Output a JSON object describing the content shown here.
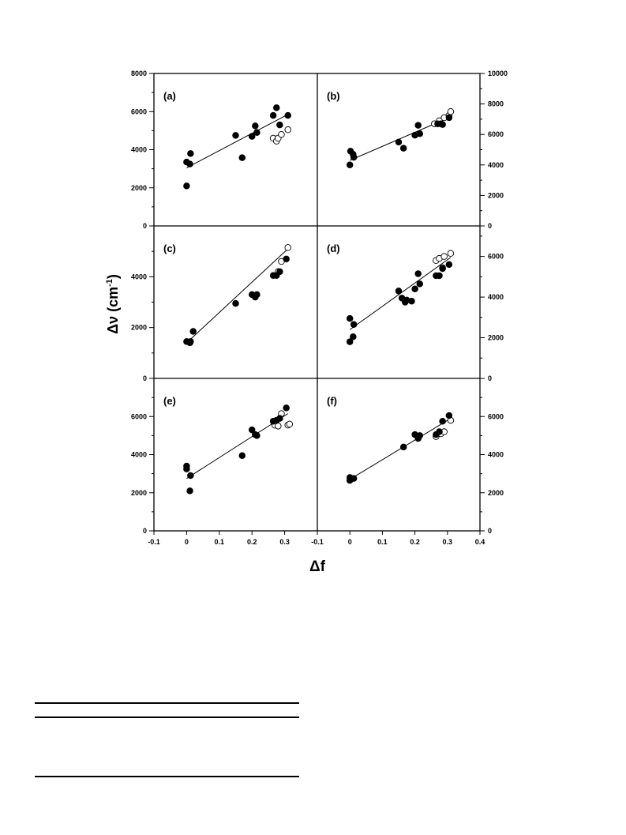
{
  "figure": {
    "xlabel": "Δf",
    "ylabel_main": "Δν (cm",
    "ylabel_sup": "-1",
    "ylabel_close": ")"
  },
  "chart_data": [
    {
      "id": "a",
      "label": "(a)",
      "type": "scatter",
      "side": "left",
      "xlim": [
        -0.1,
        0.4
      ],
      "ylim": [
        0,
        8000
      ],
      "yticks": [
        0,
        2000,
        4000,
        6000,
        8000
      ],
      "filled": [
        [
          0.0,
          2100
        ],
        [
          0.0,
          3350
        ],
        [
          0.01,
          3250
        ],
        [
          0.012,
          3800
        ],
        [
          0.15,
          4750
        ],
        [
          0.17,
          3580
        ],
        [
          0.2,
          4700
        ],
        [
          0.21,
          5250
        ],
        [
          0.215,
          4900
        ],
        [
          0.265,
          5800
        ],
        [
          0.275,
          6200
        ],
        [
          0.285,
          5300
        ],
        [
          0.31,
          5800
        ]
      ],
      "open": [
        [
          0.265,
          4600
        ],
        [
          0.275,
          4450
        ],
        [
          0.28,
          4600
        ],
        [
          0.29,
          4800
        ],
        [
          0.31,
          5050
        ]
      ],
      "fit": [
        [
          0.0,
          3050
        ],
        [
          0.31,
          5850
        ]
      ]
    },
    {
      "id": "b",
      "label": "(b)",
      "type": "scatter",
      "side": "right",
      "xlim": [
        -0.1,
        0.4
      ],
      "ylim": [
        0,
        10000
      ],
      "yticks": [
        0,
        2000,
        4000,
        6000,
        8000,
        10000
      ],
      "filled": [
        [
          0.0,
          4000
        ],
        [
          0.002,
          4900
        ],
        [
          0.01,
          4700
        ],
        [
          0.012,
          4500
        ],
        [
          0.15,
          5500
        ],
        [
          0.165,
          5100
        ],
        [
          0.2,
          5950
        ],
        [
          0.21,
          6600
        ],
        [
          0.215,
          6050
        ],
        [
          0.27,
          6700
        ],
        [
          0.28,
          6700
        ],
        [
          0.285,
          6650
        ],
        [
          0.305,
          7100
        ]
      ],
      "open": [
        [
          0.26,
          6700
        ],
        [
          0.275,
          6900
        ],
        [
          0.29,
          7100
        ],
        [
          0.305,
          7250
        ],
        [
          0.31,
          7500
        ]
      ],
      "fit": [
        [
          0.0,
          4300
        ],
        [
          0.31,
          7150
        ]
      ]
    },
    {
      "id": "c",
      "label": "(c)",
      "type": "scatter",
      "side": "left",
      "xlim": [
        -0.1,
        0.4
      ],
      "ylim": [
        0,
        6000
      ],
      "yticks": [
        0,
        2000,
        4000
      ],
      "filled": [
        [
          0.0,
          1450
        ],
        [
          0.01,
          1400
        ],
        [
          0.012,
          1450
        ],
        [
          0.02,
          1850
        ],
        [
          0.15,
          2950
        ],
        [
          0.2,
          3300
        ],
        [
          0.21,
          3200
        ],
        [
          0.215,
          3300
        ],
        [
          0.265,
          4050
        ],
        [
          0.275,
          4050
        ],
        [
          0.285,
          4200
        ],
        [
          0.305,
          4700
        ]
      ],
      "open": [
        [
          0.28,
          4200
        ],
        [
          0.29,
          4600
        ],
        [
          0.31,
          5150
        ]
      ],
      "fit": [
        [
          0.0,
          1400
        ],
        [
          0.31,
          5100
        ]
      ]
    },
    {
      "id": "d",
      "label": "(d)",
      "type": "scatter",
      "side": "right",
      "xlim": [
        -0.1,
        0.4
      ],
      "ylim": [
        0,
        7500
      ],
      "yticks": [
        0,
        2000,
        4000,
        6000
      ],
      "filled": [
        [
          0.0,
          1800
        ],
        [
          0.0,
          2950
        ],
        [
          0.01,
          2050
        ],
        [
          0.012,
          2650
        ],
        [
          0.15,
          4300
        ],
        [
          0.16,
          3950
        ],
        [
          0.17,
          3750
        ],
        [
          0.175,
          3850
        ],
        [
          0.19,
          3800
        ],
        [
          0.2,
          4400
        ],
        [
          0.21,
          5150
        ],
        [
          0.215,
          4650
        ],
        [
          0.265,
          5050
        ],
        [
          0.275,
          5050
        ],
        [
          0.285,
          5400
        ],
        [
          0.305,
          5600
        ]
      ],
      "open": [
        [
          0.265,
          5800
        ],
        [
          0.275,
          5900
        ],
        [
          0.285,
          5450
        ],
        [
          0.29,
          6000
        ],
        [
          0.31,
          6150
        ]
      ],
      "fit": [
        [
          0.0,
          2400
        ],
        [
          0.31,
          5950
        ]
      ]
    },
    {
      "id": "e",
      "label": "(e)",
      "type": "scatter",
      "side": "left",
      "xlim": [
        -0.1,
        0.4
      ],
      "ylim": [
        0,
        8000
      ],
      "yticks": [
        0,
        2000,
        4000,
        6000
      ],
      "filled": [
        [
          0.0,
          3250
        ],
        [
          0.0,
          3400
        ],
        [
          0.01,
          2100
        ],
        [
          0.012,
          2900
        ],
        [
          0.17,
          3950
        ],
        [
          0.2,
          5300
        ],
        [
          0.21,
          5050
        ],
        [
          0.215,
          5000
        ],
        [
          0.265,
          5750
        ],
        [
          0.275,
          5800
        ],
        [
          0.285,
          5900
        ],
        [
          0.305,
          6450
        ]
      ],
      "open": [
        [
          0.27,
          5550
        ],
        [
          0.28,
          5500
        ],
        [
          0.29,
          6150
        ],
        [
          0.31,
          5550
        ],
        [
          0.315,
          5600
        ]
      ],
      "fit": [
        [
          0.0,
          2750
        ],
        [
          0.31,
          6150
        ]
      ]
    },
    {
      "id": "f",
      "label": "(f)",
      "type": "scatter",
      "side": "right",
      "xlim": [
        -0.1,
        0.4
      ],
      "ylim": [
        0,
        8000
      ],
      "yticks": [
        0,
        2000,
        4000,
        6000
      ],
      "filled": [
        [
          0.0,
          2650
        ],
        [
          0.0,
          2800
        ],
        [
          0.012,
          2750
        ],
        [
          0.165,
          4400
        ],
        [
          0.2,
          5050
        ],
        [
          0.21,
          4850
        ],
        [
          0.215,
          5000
        ],
        [
          0.265,
          5050
        ],
        [
          0.275,
          5200
        ],
        [
          0.285,
          5750
        ],
        [
          0.305,
          6050
        ]
      ],
      "open": [
        [
          0.265,
          4950
        ],
        [
          0.28,
          5100
        ],
        [
          0.29,
          5200
        ],
        [
          0.31,
          5800
        ]
      ],
      "fit": [
        [
          0.0,
          2700
        ],
        [
          0.31,
          5900
        ]
      ]
    }
  ],
  "x_axis": {
    "ticks": [
      -0.1,
      0,
      0.1,
      0.2,
      0.3
    ],
    "ticks_right": [
      -0.1,
      0,
      0.1,
      0.2,
      0.3,
      0.4
    ],
    "labels": [
      "-0.1",
      "0",
      "0.1",
      "0.2",
      "0.3"
    ],
    "labels_right": [
      "-0.1",
      "0",
      "0.1",
      "0.2",
      "0.3",
      "0.4"
    ]
  }
}
